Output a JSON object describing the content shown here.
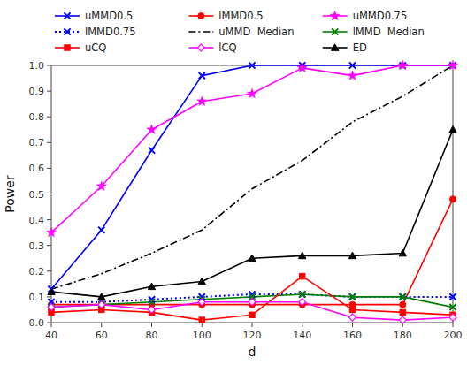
{
  "chart_data": {
    "type": "line",
    "xlabel": "d",
    "ylabel": "Power",
    "x": [
      40,
      60,
      80,
      100,
      120,
      140,
      160,
      180,
      200
    ],
    "series": [
      {
        "name": "uMMD0.5",
        "color": "blue",
        "marker": "x",
        "line_style": "solid",
        "values": [
          0.13,
          0.36,
          0.67,
          0.96,
          1.0,
          1.0,
          1.0,
          1.0,
          1.0
        ]
      },
      {
        "name": "lMMD0.5",
        "color": "red",
        "marker": "circle",
        "line_style": "solid",
        "values": [
          0.07,
          0.07,
          0.07,
          0.07,
          0.07,
          0.07,
          0.07,
          0.07,
          0.48
        ]
      },
      {
        "name": "uMMD0.75",
        "color": "magenta",
        "marker": "star",
        "line_style": "solid",
        "values": [
          0.35,
          0.53,
          0.75,
          0.86,
          0.89,
          0.99,
          0.96,
          1.0,
          1.0
        ]
      },
      {
        "name": "lMMD0.75",
        "color": "blue",
        "marker": "x",
        "line_style": "dotted",
        "values": [
          0.08,
          0.08,
          0.09,
          0.1,
          0.11,
          0.11,
          0.1,
          0.1,
          0.1
        ]
      },
      {
        "name": "uMMD  Median",
        "color": "black",
        "marker": "none",
        "line_style": "dashdot",
        "values": [
          0.13,
          0.19,
          0.27,
          0.36,
          0.52,
          0.63,
          0.78,
          0.88,
          1.0
        ]
      },
      {
        "name": "lMMD  Median",
        "color": "green",
        "marker": "x",
        "line_style": "solid",
        "values": [
          0.06,
          0.07,
          0.08,
          0.09,
          0.1,
          0.11,
          0.1,
          0.1,
          0.06
        ]
      },
      {
        "name": "uCQ",
        "color": "red",
        "marker": "square",
        "line_style": "solid",
        "values": [
          0.04,
          0.05,
          0.04,
          0.01,
          0.03,
          0.18,
          0.05,
          0.04,
          0.03
        ]
      },
      {
        "name": "lCQ",
        "color": "magenta",
        "marker": "diamond-open",
        "line_style": "solid",
        "values": [
          0.06,
          0.07,
          0.05,
          0.08,
          0.08,
          0.08,
          0.02,
          0.01,
          0.02
        ]
      },
      {
        "name": "ED",
        "color": "black",
        "marker": "triangle",
        "line_style": "solid",
        "values": [
          0.12,
          0.1,
          0.14,
          0.16,
          0.25,
          0.26,
          0.26,
          0.27,
          0.75
        ]
      }
    ],
    "xlim": [
      40,
      200
    ],
    "ylim": [
      0,
      1.0
    ],
    "xticks": [
      40,
      60,
      80,
      100,
      120,
      140,
      160,
      180,
      200
    ],
    "yticks": [
      {
        "value": 0,
        "label": "0.0"
      },
      0.1,
      0.2,
      0.3,
      0.4,
      0.5,
      0.6,
      0.7,
      0.8,
      0.9,
      {
        "value": 1.0,
        "label": "1.0"
      }
    ],
    "grid": false,
    "legend": "top"
  }
}
